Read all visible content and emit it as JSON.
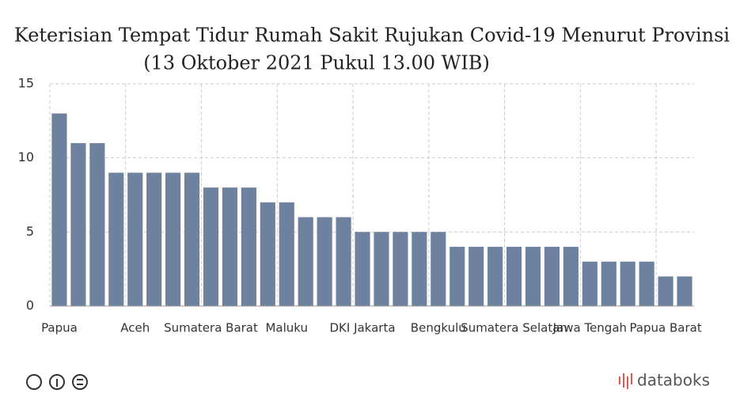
{
  "chart_data": {
    "type": "bar",
    "title": "Keterisian Tempat Tidur Rumah Sakit Rujukan Covid-19 Menurut Provinsi",
    "subtitle": "(13 Oktober 2021 Pukul 13.00 WIB)",
    "categories": [
      "Papua",
      null,
      null,
      null,
      "Aceh",
      null,
      null,
      null,
      "Sumatera Barat",
      null,
      null,
      null,
      "Maluku",
      null,
      null,
      null,
      "DKI Jakarta",
      null,
      null,
      null,
      "Bengkulu",
      null,
      null,
      null,
      "Sumatera Selatan",
      null,
      null,
      null,
      "Jawa Tengah",
      null,
      null,
      null,
      "Papua Barat",
      null
    ],
    "values": [
      13,
      11,
      11,
      9,
      9,
      9,
      9,
      9,
      8,
      8,
      8,
      7,
      7,
      6,
      6,
      6,
      5,
      5,
      5,
      5,
      5,
      4,
      4,
      4,
      4,
      4,
      4,
      4,
      3,
      3,
      3,
      3,
      2,
      2
    ],
    "color": "#6e819e",
    "ylim": [
      0,
      15
    ],
    "yticks": [
      0,
      5,
      10,
      15
    ],
    "grid": true,
    "brand": "databoks"
  }
}
